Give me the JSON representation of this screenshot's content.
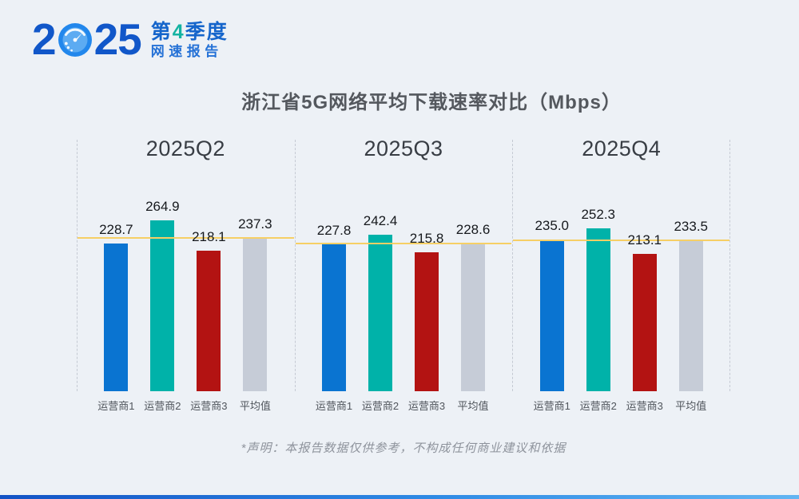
{
  "logo": {
    "year_prefix": "2",
    "year_suffix": "25",
    "badge_line1_pre": "第",
    "badge_line1_num": "4",
    "badge_line1_post": "季度",
    "badge_line2": "网速报告"
  },
  "title": "浙江省5G网络平均下载速率对比（Mbps）",
  "disclaimer": "*声明：本报告数据仅供参考，不构成任何商业建议和依据",
  "chart_data": {
    "type": "bar",
    "title": "浙江省5G网络平均下载速率对比（Mbps）",
    "unit": "Mbps",
    "categories": [
      "运营商1",
      "运营商2",
      "运营商3",
      "平均值"
    ],
    "groups": [
      {
        "title": "2025Q2",
        "average_line": 237.3,
        "values": [
          "228.7",
          "264.9",
          "218.1",
          "237.3"
        ]
      },
      {
        "title": "2025Q3",
        "average_line": 228.6,
        "values": [
          "227.8",
          "242.4",
          "215.8",
          "228.6"
        ]
      },
      {
        "title": "2025Q4",
        "average_line": 233.5,
        "values": [
          "235.0",
          "252.3",
          "213.1",
          "233.5"
        ]
      }
    ],
    "series_colors": [
      "#0a74d1",
      "#00b2a9",
      "#b31312",
      "#c6ccd7"
    ],
    "avg_line_color": "#f6cf65",
    "background_color": "#edf1f6",
    "ylim": [
      0,
      390
    ],
    "grid": "dashed vertical separators between quarter groups",
    "legend_position": "none",
    "value_labels": "above bars",
    "annotations": "horizontal yellow line per group at that group's 平均值"
  }
}
